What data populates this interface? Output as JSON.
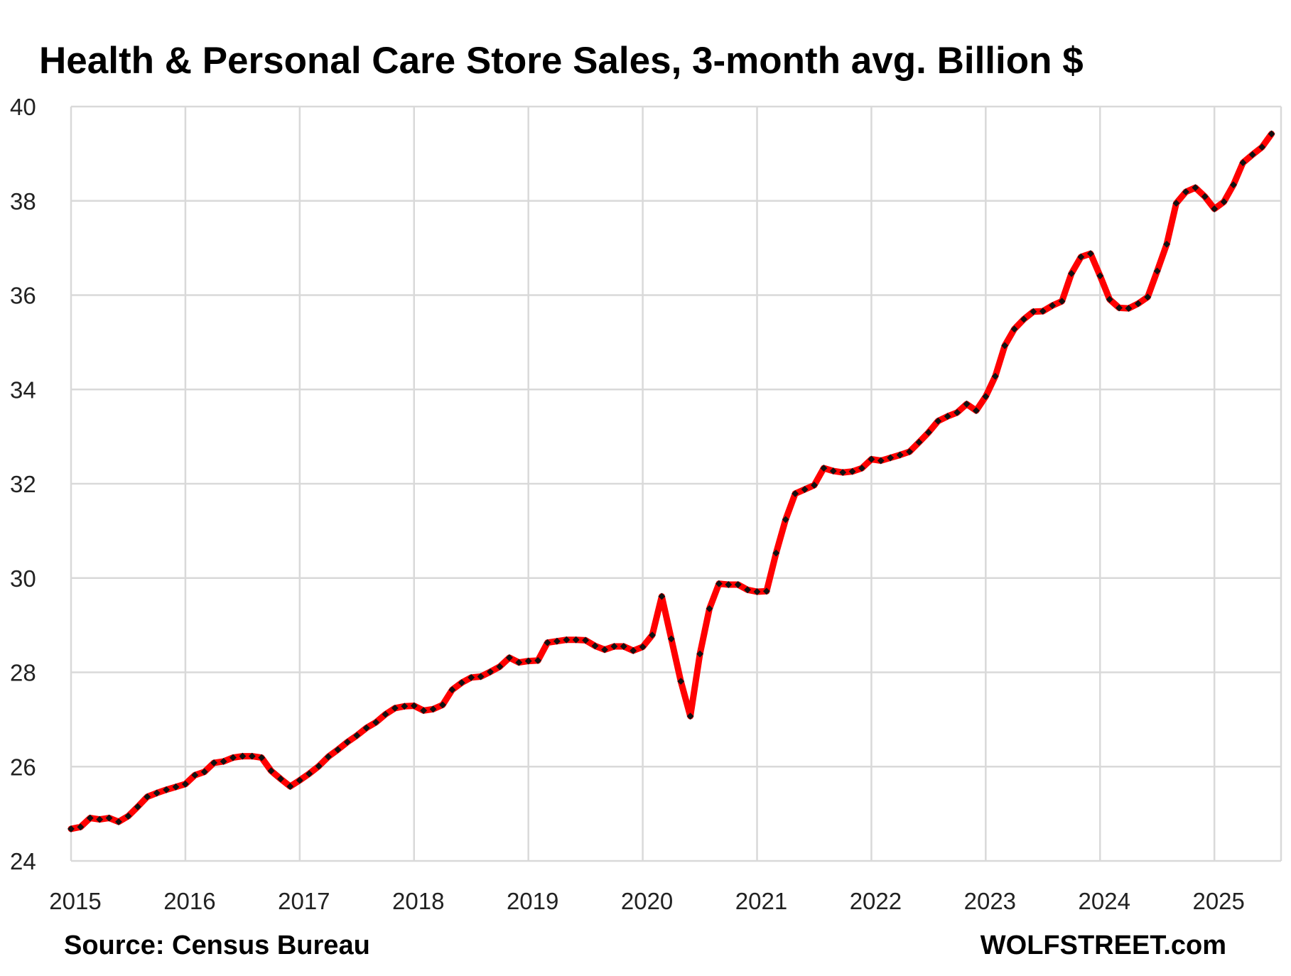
{
  "chart_data": {
    "type": "line",
    "title": "Health &  Personal Care Store Sales, 3-month avg. Billion $",
    "xlabel": "",
    "ylabel": "",
    "ylim": [
      24,
      40
    ],
    "xlim": [
      2015,
      2025.583
    ],
    "yticks": [
      "24",
      "26",
      "28",
      "30",
      "32",
      "34",
      "36",
      "38",
      "40"
    ],
    "xticks": [
      "2015",
      "2016",
      "2017",
      "2018",
      "2019",
      "2020",
      "2021",
      "2022",
      "2023",
      "2024",
      "2025"
    ],
    "grid": true,
    "line_color": "#ff0000",
    "marker_color": "#111111",
    "series": [
      {
        "name": "Health & Personal Care Store Sales, 3-month avg.",
        "start": 2015.0,
        "step_months": 1,
        "values": [
          24.68,
          24.72,
          24.91,
          24.88,
          24.91,
          24.83,
          24.95,
          25.15,
          25.36,
          25.44,
          25.51,
          25.57,
          25.63,
          25.82,
          25.89,
          26.08,
          26.11,
          26.19,
          26.22,
          26.22,
          26.19,
          25.91,
          25.74,
          25.58,
          25.71,
          25.85,
          26.01,
          26.21,
          26.36,
          26.52,
          26.66,
          26.82,
          26.94,
          27.11,
          27.24,
          27.28,
          27.29,
          27.19,
          27.22,
          27.31,
          27.63,
          27.78,
          27.89,
          27.91,
          28.01,
          28.12,
          28.31,
          28.21,
          28.24,
          28.25,
          28.63,
          28.66,
          28.69,
          28.69,
          28.68,
          28.56,
          28.48,
          28.55,
          28.55,
          28.46,
          28.54,
          28.79,
          29.61,
          28.71,
          27.81,
          27.07,
          28.39,
          29.35,
          29.88,
          29.86,
          29.86,
          29.75,
          29.71,
          29.72,
          30.53,
          31.24,
          31.79,
          31.88,
          31.97,
          32.33,
          32.27,
          32.24,
          32.26,
          32.33,
          32.52,
          32.49,
          32.55,
          32.61,
          32.68,
          32.88,
          33.09,
          33.33,
          33.43,
          33.51,
          33.69,
          33.55,
          33.85,
          34.28,
          34.93,
          35.28,
          35.49,
          35.65,
          35.66,
          35.78,
          35.87,
          36.46,
          36.81,
          36.88,
          36.41,
          35.91,
          35.73,
          35.72,
          35.82,
          35.96,
          36.51,
          37.08,
          37.95,
          38.19,
          38.28,
          38.09,
          37.83,
          37.98,
          38.34,
          38.81,
          38.98,
          39.14,
          39.42
        ]
      }
    ]
  },
  "footer": {
    "source": "Source: Census Bureau",
    "brand": "WOLFSTREET.com"
  }
}
